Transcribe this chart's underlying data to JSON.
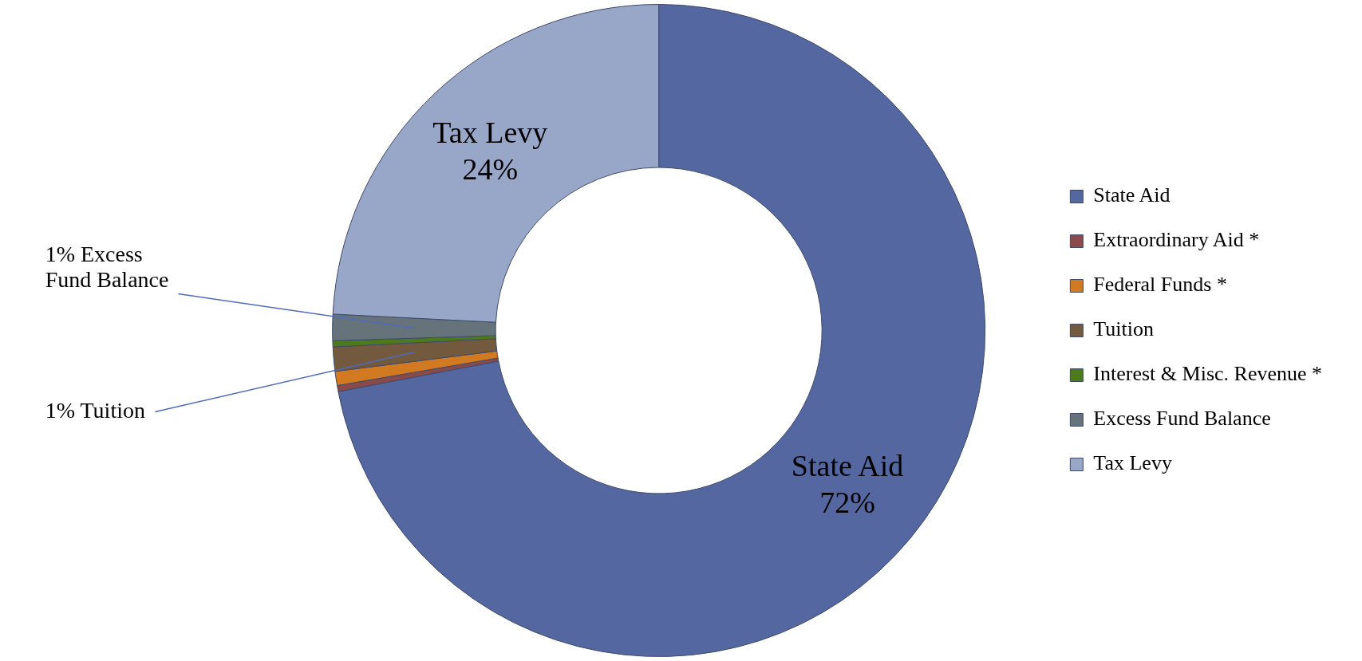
{
  "chart_data": {
    "type": "donut",
    "categories": [
      "State Aid",
      "Extraordinary Aid *",
      "Federal Funds *",
      "Tuition",
      "Interest & Misc. Revenue *",
      "Excess Fund Balance",
      "Tax Levy"
    ],
    "values": [
      72,
      0.3,
      0.7,
      1.2,
      0.3,
      1.3,
      24.2
    ],
    "colors": [
      "#5467a0",
      "#8b4a4a",
      "#d17a22",
      "#735a3f",
      "#4e7a1e",
      "#67737a",
      "#98a6c8"
    ],
    "value_labels": [
      "State Aid 72%",
      null,
      null,
      "1% Tuition",
      null,
      "1% Excess Fund Balance",
      "Tax Levy 24%"
    ],
    "legend": "right"
  }
}
